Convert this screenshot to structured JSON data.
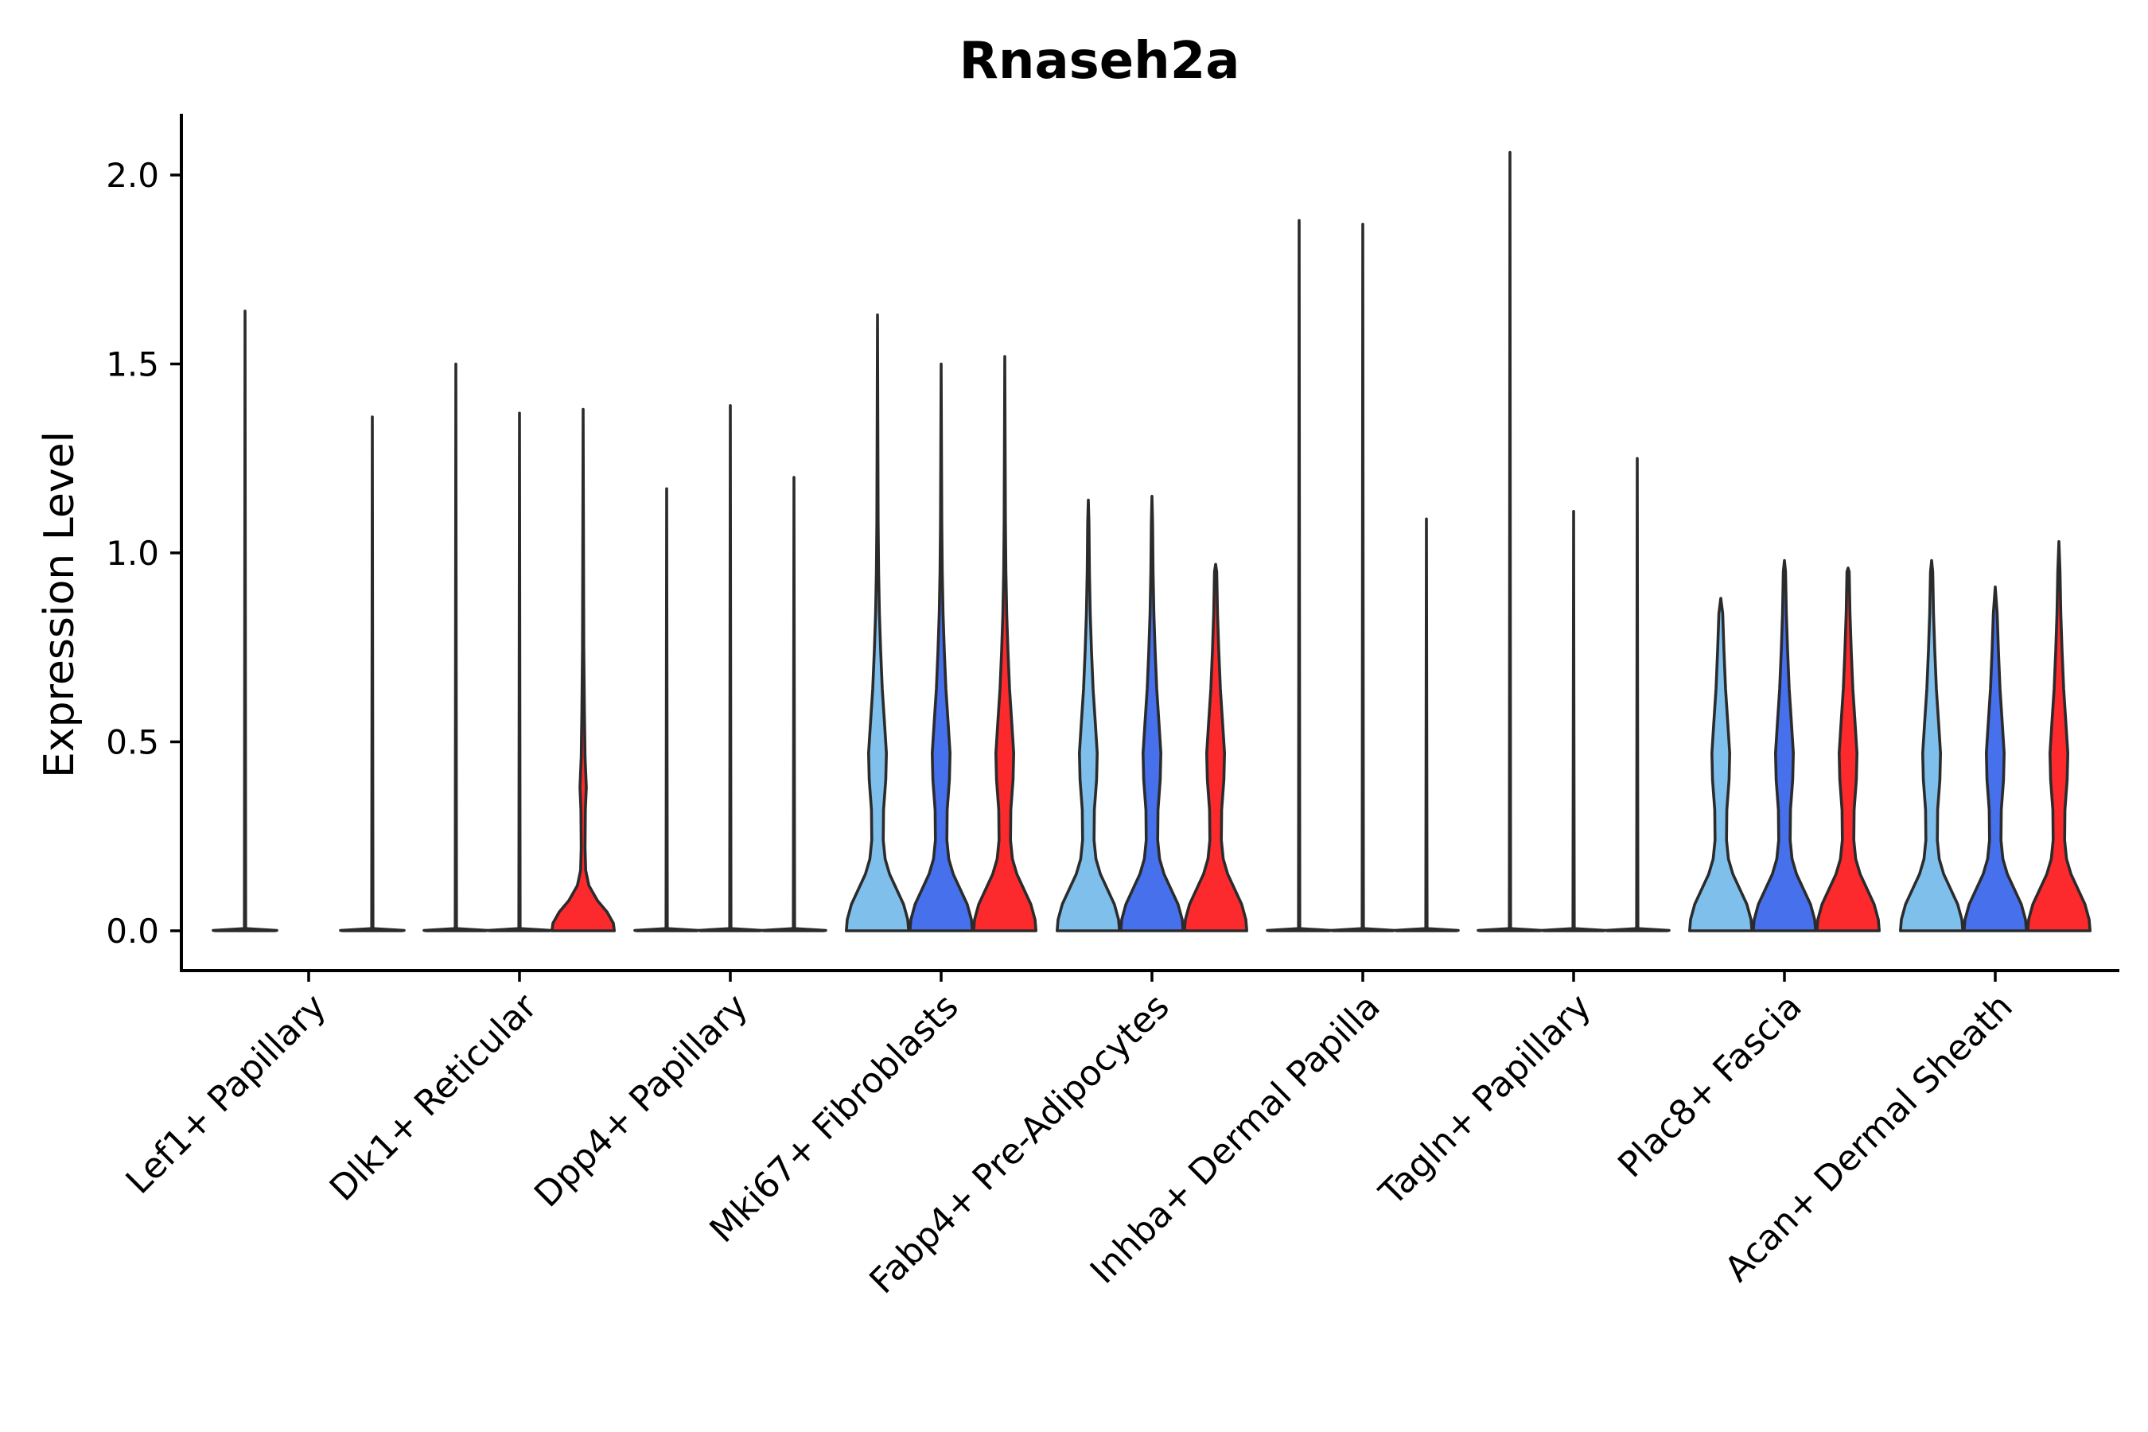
{
  "chart_data": {
    "type": "violin",
    "title": "Rnaseh2a",
    "xlabel": "",
    "ylabel": "Expression Level",
    "ylim": [
      -0.1,
      2.17
    ],
    "yticks": [
      0.0,
      0.5,
      1.0,
      1.5,
      2.0
    ],
    "ytick_labels": [
      "0.0",
      "0.5",
      "1.0",
      "1.5",
      "2.0"
    ],
    "grid": false,
    "legend": "none",
    "series_colors": [
      "#7fbfec",
      "#4670ec",
      "#fc2a2d"
    ],
    "categories": [
      "Lef1+ Papillary",
      "Dlk1+ Reticular",
      "Dpp4+ Papillary",
      "Mki67+ Fibroblasts",
      "Fabp4+ Pre-Adipocytes",
      "Inhba+ Dermal Papilla",
      "Tagln+ Papillary",
      "Plac8+ Fascia",
      "Acan+ Dermal Sheath"
    ],
    "violins": [
      [
        {
          "max": 1.64,
          "shape": "flat"
        },
        {
          "max": 0.0,
          "shape": "flat"
        },
        {
          "max": 1.36,
          "shape": "flat"
        }
      ],
      [
        {
          "max": 1.5,
          "shape": "flat"
        },
        {
          "max": 1.37,
          "shape": "flat"
        },
        {
          "max": 1.38,
          "shape": "small"
        }
      ],
      [
        {
          "max": 1.17,
          "shape": "flat"
        },
        {
          "max": 1.39,
          "shape": "flat"
        },
        {
          "max": 1.2,
          "shape": "flat"
        }
      ],
      [
        {
          "max": 1.63,
          "shape": "full"
        },
        {
          "max": 1.5,
          "shape": "full"
        },
        {
          "max": 1.52,
          "shape": "full"
        }
      ],
      [
        {
          "max": 1.14,
          "shape": "full"
        },
        {
          "max": 1.15,
          "shape": "full"
        },
        {
          "max": 0.97,
          "shape": "full"
        }
      ],
      [
        {
          "max": 1.88,
          "shape": "flat"
        },
        {
          "max": 1.87,
          "shape": "flat"
        },
        {
          "max": 1.09,
          "shape": "flat"
        }
      ],
      [
        {
          "max": 2.06,
          "shape": "flat"
        },
        {
          "max": 1.11,
          "shape": "flat"
        },
        {
          "max": 1.25,
          "shape": "flat"
        }
      ],
      [
        {
          "max": 0.88,
          "shape": "full"
        },
        {
          "max": 0.98,
          "shape": "full"
        },
        {
          "max": 0.96,
          "shape": "full"
        }
      ],
      [
        {
          "max": 0.98,
          "shape": "full"
        },
        {
          "max": 0.91,
          "shape": "full"
        },
        {
          "max": 1.03,
          "shape": "full"
        }
      ]
    ]
  }
}
